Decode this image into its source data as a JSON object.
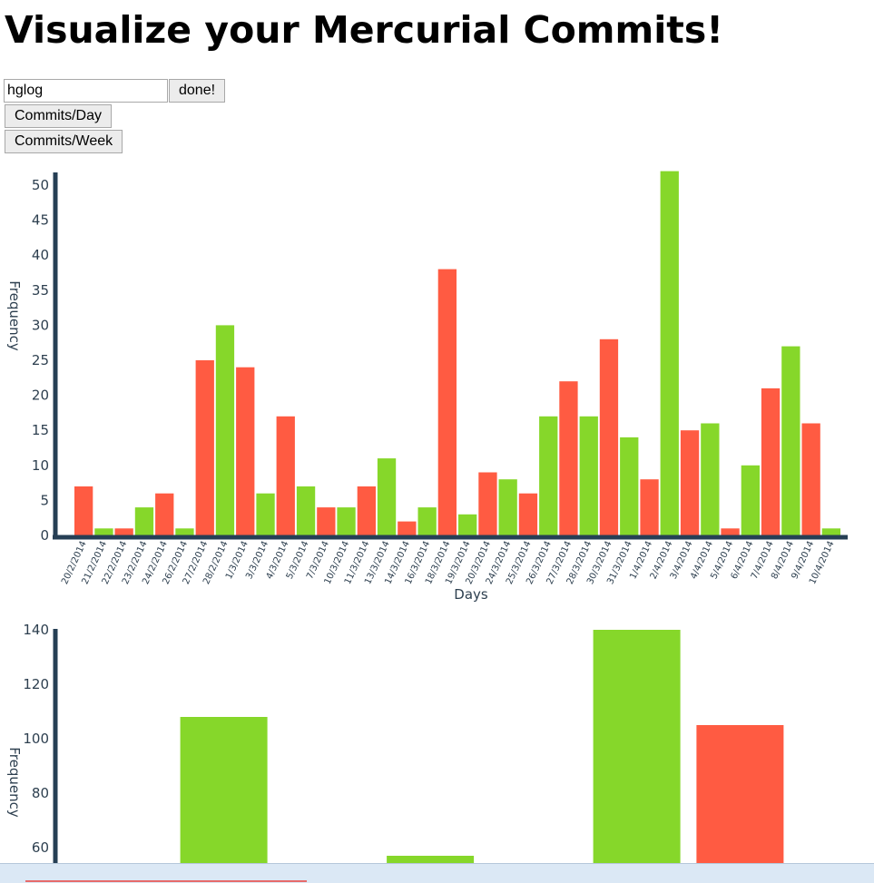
{
  "page": {
    "title": "Visualize your Mercurial Commits!"
  },
  "controls": {
    "log_input_value": "hglog",
    "done_label": "done!",
    "commits_day_label": "Commits/Day",
    "commits_week_label": "Commits/Week"
  },
  "colors": {
    "green": "#86d72a",
    "red": "#ff5b42",
    "axis": "#263f55"
  },
  "chart_data": [
    {
      "type": "bar",
      "title": "",
      "xlabel": "Days",
      "ylabel": "Frequency",
      "ylim": [
        0,
        52
      ],
      "yticks": [
        0,
        5,
        10,
        15,
        20,
        25,
        30,
        35,
        40,
        45,
        50
      ],
      "categories": [
        "20/2/2014",
        "21/2/2014",
        "22/2/2014",
        "23/2/2014",
        "24/2/2014",
        "26/2/2014",
        "27/2/2014",
        "28/2/2014",
        "1/3/2014",
        "3/3/2014",
        "4/3/2014",
        "5/3/2014",
        "7/3/2014",
        "10/3/2014",
        "11/3/2014",
        "13/3/2014",
        "14/3/2014",
        "16/3/2014",
        "18/3/2014",
        "19/3/2014",
        "20/3/2014",
        "24/3/2014",
        "25/3/2014",
        "26/3/2014",
        "27/3/2014",
        "28/3/2014",
        "30/3/2014",
        "31/3/2014",
        "1/4/2014",
        "2/4/2014",
        "3/4/2014",
        "4/4/2014",
        "5/4/2014",
        "6/4/2014",
        "7/4/2014",
        "8/4/2014",
        "9/4/2014",
        "10/4/2014"
      ],
      "values": [
        7,
        1,
        1,
        4,
        6,
        1,
        25,
        30,
        24,
        6,
        17,
        7,
        4,
        4,
        7,
        11,
        2,
        4,
        38,
        3,
        9,
        8,
        6,
        17,
        22,
        17,
        28,
        14,
        8,
        52,
        15,
        16,
        1,
        10,
        21,
        27,
        16,
        1
      ],
      "bar_colors": [
        "red",
        "green",
        "red",
        "green",
        "red",
        "green",
        "red",
        "green",
        "red",
        "green",
        "red",
        "green",
        "red",
        "green",
        "red",
        "green",
        "red",
        "green",
        "red",
        "green",
        "red",
        "green",
        "red",
        "green",
        "red",
        "green",
        "red",
        "green",
        "red",
        "green",
        "red",
        "green",
        "red",
        "green",
        "red",
        "green",
        "red",
        "green"
      ],
      "grid": false,
      "legend": "none"
    },
    {
      "type": "bar",
      "title": "",
      "xlabel": "",
      "ylabel": "Frequency",
      "ylim_visible": [
        54,
        140
      ],
      "yticks": [
        60,
        80,
        100,
        120,
        140
      ],
      "categories": [
        "",
        "",
        "",
        "",
        "",
        "",
        "",
        ""
      ],
      "values": [
        null,
        108,
        null,
        57,
        null,
        140,
        105,
        null
      ],
      "bar_colors": [
        "",
        "green",
        "",
        "green",
        "",
        "green",
        "red",
        ""
      ],
      "grid": false,
      "legend": "none"
    }
  ],
  "status_bar": {}
}
